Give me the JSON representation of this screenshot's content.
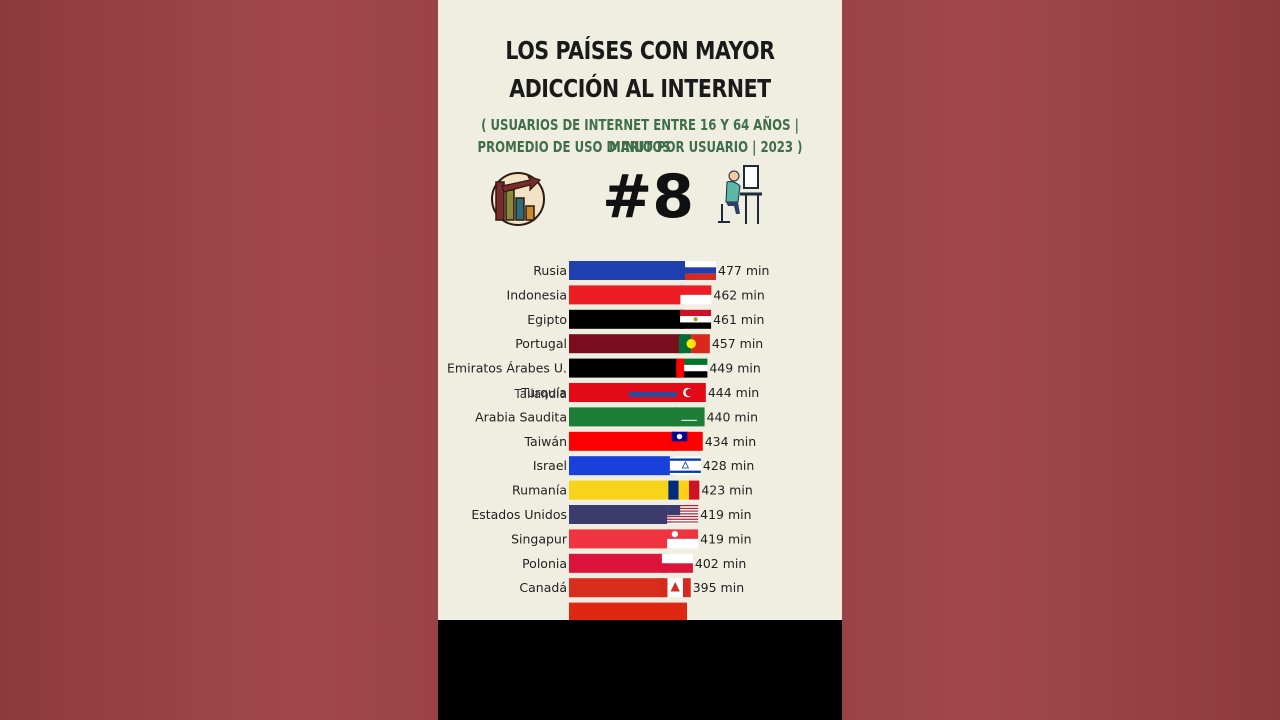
{
  "header": {
    "title_line1": "LOS PAÍSES CON MAYOR",
    "title_line2": "ADICCIÓN AL INTERNET",
    "subtitle_line1": "( USUARIOS DE INTERNET ENTRE 16 Y 64 AÑOS  |  MINUTOS",
    "subtitle_line2": "PROMEDIO DE USO DIARIO POR USUARIO  |  2023 )",
    "rank": "#8",
    "left_icon": "declining-bar-chart-icon",
    "right_icon": "person-at-computer-icon"
  },
  "colors": {
    "page_background": "#9b4144",
    "panel_background": "#f0eee1",
    "subtitle": "#3f6e4a"
  },
  "chart_data": {
    "type": "bar",
    "orientation": "horizontal",
    "unit_suffix": " min",
    "categories": [
      "Rusia",
      "Indonesia",
      "Egipto",
      "Portugal",
      "Emiratos Árabes U.",
      "Turquía",
      "Arabia Saudita",
      "Taiwán",
      "Israel",
      "Rumanía",
      "Estados Unidos",
      "Singapur",
      "Polonia",
      "Canadá"
    ],
    "values": [
      477,
      462,
      461,
      457,
      449,
      444,
      440,
      434,
      428,
      423,
      419,
      419,
      402,
      395
    ],
    "value_labels": [
      "477 min",
      "462 min",
      "461 min",
      "457 min",
      "449 min",
      "444 min",
      "440 min",
      "434 min",
      "428 min",
      "423 min",
      "419 min",
      "419 min",
      "402 min",
      "395 min"
    ],
    "overlapping_label": "Tailandia",
    "bar_colors": [
      "#1f3fae",
      "#ee1c25",
      "#000000",
      "#7b0c1e",
      "#000000",
      "#e30a17",
      "#1d7c36",
      "#fb0000",
      "#1940d8",
      "#f7d418",
      "#3c3b6e",
      "#ef3340",
      "#dc143c",
      "#d62d1d"
    ],
    "flag_icons": [
      "russia-flag-icon",
      "indonesia-flag-icon",
      "egypt-flag-icon",
      "portugal-flag-icon",
      "uae-flag-icon",
      "turkey-flag-icon",
      "saudi-arabia-flag-icon",
      "taiwan-flag-icon",
      "israel-flag-icon",
      "romania-flag-icon",
      "usa-flag-icon",
      "singapore-flag-icon",
      "poland-flag-icon",
      "canada-flag-icon"
    ]
  }
}
